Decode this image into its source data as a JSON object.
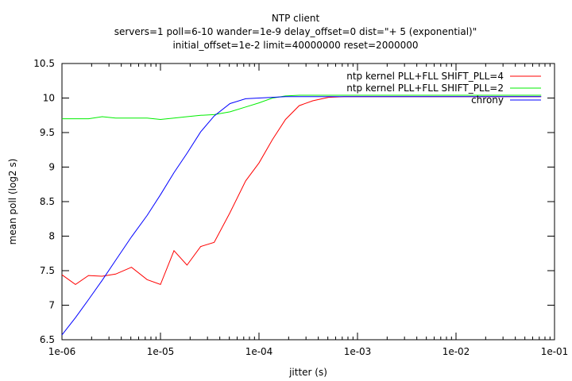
{
  "chart_data": {
    "type": "line",
    "title": "NTP client",
    "subtitle_lines": [
      "servers=1 poll=6-10 wander=1e-9 delay_offset=0 dist=\"+ 5 (exponential)\"",
      "initial_offset=1e-2 limit=40000000 reset=2000000"
    ],
    "xlabel": "jitter (s)",
    "ylabel": "mean poll (log2 s)",
    "x_scale": "log",
    "xlim": [
      1e-06,
      0.1
    ],
    "ylim": [
      6.5,
      10.5
    ],
    "x_ticks": [
      1e-06,
      1e-05,
      0.0001,
      0.001,
      0.01,
      0.1
    ],
    "x_tick_labels": [
      "1e-06",
      "1e-05",
      "1e-04",
      "1e-03",
      "1e-02",
      "1e-01"
    ],
    "y_ticks": [
      6.5,
      7,
      7.5,
      8,
      8.5,
      9,
      9.5,
      10,
      10.5
    ],
    "y_tick_labels": [
      "6.5",
      "7",
      "7.5",
      "8",
      "8.5",
      "9",
      "9.5",
      "10",
      "10.5"
    ],
    "grid": false,
    "legend_position": "top-right",
    "series": [
      {
        "name": "ntp kernel PLL+FLL SHIFT_PLL=4",
        "color": "#ff0000",
        "x": [
          1e-06,
          1.37e-06,
          1.86e-06,
          2.56e-06,
          3.51e-06,
          5.08e-06,
          7.32e-06,
          1e-05,
          1.37e-05,
          1.86e-05,
          2.56e-05,
          3.51e-05,
          5.08e-05,
          7.32e-05,
          0.0001,
          0.000137,
          0.000186,
          0.000256,
          0.000351,
          0.000508,
          0.000732,
          0.001,
          0.00137,
          0.00186,
          0.00256,
          0.00351,
          0.00508,
          0.00732,
          0.01,
          0.0137,
          0.0186,
          0.0256,
          0.0351,
          0.0508,
          0.0732
        ],
        "y": [
          7.44,
          7.3,
          7.43,
          7.42,
          7.45,
          7.55,
          7.37,
          7.3,
          7.79,
          7.58,
          7.85,
          7.91,
          8.34,
          8.8,
          9.06,
          9.4,
          9.69,
          9.89,
          9.96,
          10.01,
          10.02,
          10.02,
          10.02,
          10.02,
          10.02,
          10.02,
          10.02,
          10.02,
          10.02,
          10.02,
          10.02,
          10.02,
          10.02,
          10.02,
          10.02
        ]
      },
      {
        "name": "ntp kernel PLL+FLL SHIFT_PLL=2",
        "color": "#00ee00",
        "x": [
          1e-06,
          1.37e-06,
          1.86e-06,
          2.56e-06,
          3.51e-06,
          5.08e-06,
          7.32e-06,
          1e-05,
          1.37e-05,
          1.86e-05,
          2.56e-05,
          3.51e-05,
          5.08e-05,
          7.32e-05,
          0.0001,
          0.000137,
          0.000186,
          0.000256,
          0.000351,
          0.000508,
          0.000732,
          0.001,
          0.00137,
          0.00186,
          0.00256,
          0.00351,
          0.00508,
          0.00732,
          0.01,
          0.0137,
          0.0186,
          0.0256,
          0.0351,
          0.0508,
          0.0732
        ],
        "y": [
          9.7,
          9.7,
          9.7,
          9.73,
          9.71,
          9.71,
          9.71,
          9.69,
          9.71,
          9.73,
          9.75,
          9.76,
          9.8,
          9.87,
          9.93,
          10.0,
          10.03,
          10.04,
          10.04,
          10.04,
          10.04,
          10.04,
          10.04,
          10.04,
          10.04,
          10.04,
          10.04,
          10.04,
          10.04,
          10.04,
          10.04,
          10.04,
          10.04,
          10.04,
          10.04
        ]
      },
      {
        "name": "chrony",
        "color": "#0000ff",
        "x": [
          1e-06,
          1.37e-06,
          1.86e-06,
          2.56e-06,
          3.51e-06,
          5.08e-06,
          7.32e-06,
          1e-05,
          1.37e-05,
          1.86e-05,
          2.56e-05,
          3.51e-05,
          5.08e-05,
          7.32e-05,
          0.0001,
          0.000137,
          0.000186,
          0.000256,
          0.000351,
          0.000508,
          0.000732,
          0.001,
          0.00137,
          0.00186,
          0.00256,
          0.00351,
          0.00508,
          0.00732,
          0.01,
          0.0137,
          0.0186,
          0.0256,
          0.0351,
          0.0508,
          0.0732
        ],
        "y": [
          6.57,
          6.82,
          7.08,
          7.36,
          7.65,
          7.99,
          8.3,
          8.6,
          8.92,
          9.2,
          9.51,
          9.74,
          9.92,
          9.99,
          10.0,
          10.01,
          10.02,
          10.02,
          10.02,
          10.02,
          10.02,
          10.02,
          10.02,
          10.02,
          10.02,
          10.02,
          10.02,
          10.02,
          10.02,
          10.02,
          10.02,
          10.02,
          10.02,
          10.02,
          10.02
        ]
      }
    ]
  }
}
